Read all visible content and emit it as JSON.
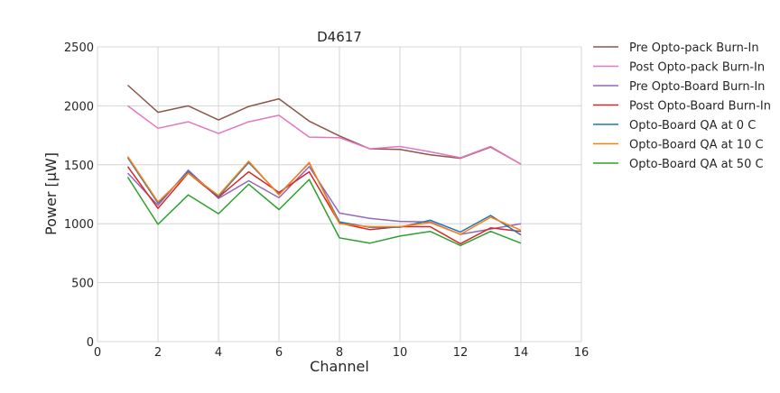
{
  "chart_data": {
    "type": "line",
    "title": "D4617",
    "xlabel": "Channel",
    "ylabel": "Power [μW]",
    "xlim": [
      0,
      16
    ],
    "ylim": [
      0,
      2500
    ],
    "x_ticks": [
      "0",
      "2",
      "4",
      "6",
      "8",
      "10",
      "12",
      "14",
      "16"
    ],
    "y_ticks": [
      "0",
      "500",
      "1000",
      "1500",
      "2000",
      "2500"
    ],
    "grid": true,
    "legend_position": "outside-right",
    "x": [
      1,
      2,
      3,
      4,
      5,
      6,
      7,
      8,
      9,
      10,
      11,
      12,
      13,
      14
    ],
    "series": [
      {
        "name": "Pre Opto-pack Burn-In",
        "color": "#8c564b",
        "values": [
          2175,
          1945,
          2000,
          1880,
          1995,
          2060,
          1870,
          1745,
          1635,
          1630,
          1585,
          1555,
          1650,
          1505
        ]
      },
      {
        "name": "Post Opto-pack Burn-In",
        "color": "#e377c2",
        "values": [
          2000,
          1810,
          1865,
          1765,
          1865,
          1920,
          1735,
          1730,
          1635,
          1655,
          1610,
          1560,
          1655,
          1505
        ]
      },
      {
        "name": "Pre Opto-Board Burn-In",
        "color": "#9467bd",
        "values": [
          1430,
          1155,
          1455,
          1215,
          1365,
          1220,
          1485,
          1090,
          1045,
          1020,
          1015,
          910,
          955,
          1000
        ]
      },
      {
        "name": "Post Opto-Board Burn-In",
        "color": "#d62728",
        "values": [
          1485,
          1130,
          1430,
          1225,
          1440,
          1265,
          1440,
          1005,
          950,
          975,
          975,
          830,
          965,
          935
        ]
      },
      {
        "name": "Opto-Board QA at 0 C",
        "color": "#1f77b4",
        "values": [
          1560,
          1175,
          1440,
          1230,
          1520,
          1250,
          1515,
          1015,
          970,
          970,
          1030,
          930,
          1070,
          905
        ]
      },
      {
        "name": "Opto-Board QA at 10 C",
        "color": "#ff7f0e",
        "values": [
          1570,
          1185,
          1430,
          1240,
          1530,
          1245,
          1520,
          1000,
          975,
          975,
          1010,
          910,
          1055,
          945
        ]
      },
      {
        "name": "Opto-Board QA at 50 C",
        "color": "#2ca02c",
        "values": [
          1395,
          995,
          1245,
          1085,
          1335,
          1120,
          1375,
          880,
          835,
          895,
          935,
          815,
          935,
          835
        ]
      }
    ]
  }
}
